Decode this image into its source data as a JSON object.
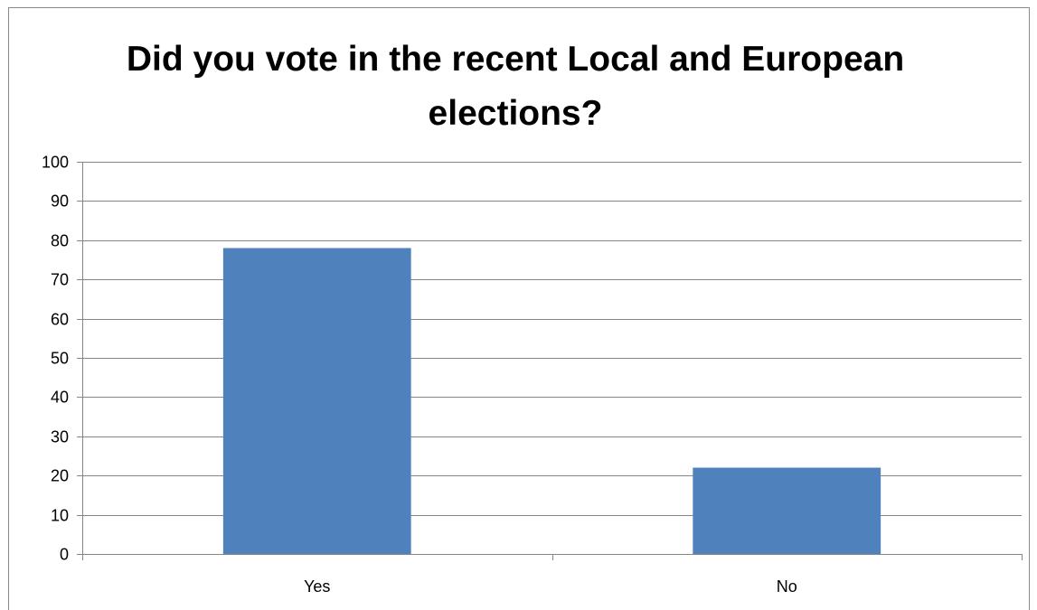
{
  "chart_data": {
    "type": "bar",
    "title": "Did you vote in the recent Local and European elections?",
    "categories": [
      "Yes",
      "No"
    ],
    "values": [
      78,
      22
    ],
    "ylim": [
      0,
      100
    ],
    "yticks": [
      0,
      10,
      20,
      30,
      40,
      50,
      60,
      70,
      80,
      90,
      100
    ],
    "grid": true,
    "legend": "none",
    "bar_color": "#4f81bd",
    "gridline_color": "#868686"
  }
}
